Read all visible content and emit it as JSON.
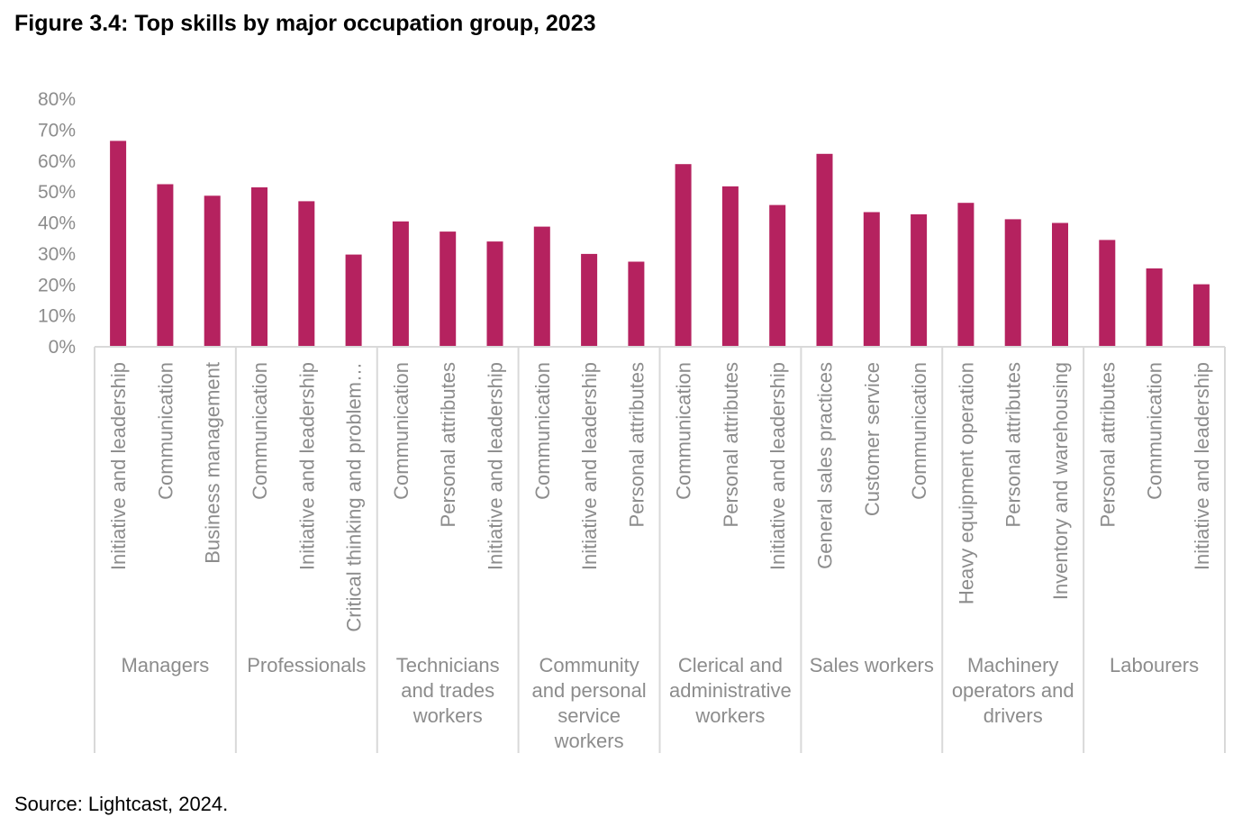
{
  "title": "Figure 3.4: Top skills by major occupation group, 2023",
  "source": "Source:  Lightcast, 2024.",
  "colors": {
    "bar": "#b5225f",
    "axis": "#d9d9d9",
    "text": "#8c8c8c"
  },
  "chart_data": {
    "type": "bar",
    "ylim": [
      0,
      80
    ],
    "yticks": [
      "0%",
      "10%",
      "20%",
      "30%",
      "40%",
      "50%",
      "60%",
      "70%",
      "80%"
    ],
    "grid": false,
    "legend": "none",
    "groups": [
      {
        "name": "Managers",
        "label_lines": [
          "Managers"
        ],
        "categories": [
          "Initiative and leadership",
          "Communication",
          "Business management"
        ],
        "values": [
          66.5,
          52.5,
          48.8
        ]
      },
      {
        "name": "Professionals",
        "label_lines": [
          "Professionals"
        ],
        "categories": [
          "Communication",
          "Initiative and leadership",
          "Critical thinking and problem…"
        ],
        "values": [
          51.5,
          47.0,
          29.8
        ]
      },
      {
        "name": "Technicians and trades workers",
        "label_lines": [
          "Technicians",
          "and trades",
          "workers"
        ],
        "categories": [
          "Communication",
          "Personal attributes",
          "Initiative and leadership"
        ],
        "values": [
          40.5,
          37.2,
          34.0
        ]
      },
      {
        "name": "Community and personal service workers",
        "label_lines": [
          "Community",
          "and personal",
          "service",
          "workers"
        ],
        "categories": [
          "Communication",
          "Initiative and leadership",
          "Personal attributes"
        ],
        "values": [
          38.8,
          30.0,
          27.5
        ]
      },
      {
        "name": "Clerical and administrative workers",
        "label_lines": [
          "Clerical and",
          "administrative",
          "workers"
        ],
        "categories": [
          "Communication",
          "Personal attributes",
          "Initiative and leadership"
        ],
        "values": [
          59.0,
          51.8,
          45.8
        ]
      },
      {
        "name": "Sales workers",
        "label_lines": [
          "Sales workers"
        ],
        "categories": [
          "General sales practices",
          "Customer service",
          "Communication"
        ],
        "values": [
          62.3,
          43.5,
          42.8
        ]
      },
      {
        "name": "Machinery operators and drivers",
        "label_lines": [
          "Machinery",
          "operators and",
          "drivers"
        ],
        "categories": [
          "Heavy equipment operation",
          "Personal attributes",
          "Inventory and warehousing"
        ],
        "values": [
          46.5,
          41.2,
          40.0
        ]
      },
      {
        "name": "Labourers",
        "label_lines": [
          "Labourers"
        ],
        "categories": [
          "Personal attributes",
          "Communication",
          "Initiative and leadership"
        ],
        "values": [
          34.5,
          25.3,
          20.2
        ]
      }
    ]
  }
}
